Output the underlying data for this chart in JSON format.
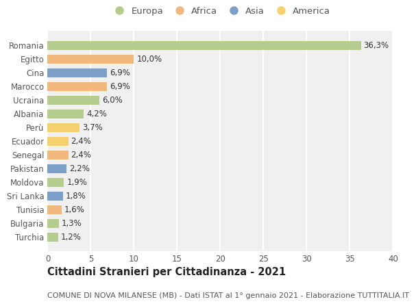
{
  "countries": [
    "Romania",
    "Egitto",
    "Cina",
    "Marocco",
    "Ucraina",
    "Albania",
    "Perù",
    "Ecuador",
    "Senegal",
    "Pakistan",
    "Moldova",
    "Sri Lanka",
    "Tunisia",
    "Bulgaria",
    "Turchia"
  ],
  "values": [
    36.3,
    10.0,
    6.9,
    6.9,
    6.0,
    4.2,
    3.7,
    2.4,
    2.4,
    2.2,
    1.9,
    1.8,
    1.6,
    1.3,
    1.2
  ],
  "labels": [
    "36,3%",
    "10,0%",
    "6,9%",
    "6,9%",
    "6,0%",
    "4,2%",
    "3,7%",
    "2,4%",
    "2,4%",
    "2,2%",
    "1,9%",
    "1,8%",
    "1,6%",
    "1,3%",
    "1,2%"
  ],
  "regions": [
    "Europa",
    "Africa",
    "Asia",
    "Africa",
    "Europa",
    "Europa",
    "America",
    "America",
    "Africa",
    "Asia",
    "Europa",
    "Asia",
    "Africa",
    "Europa",
    "Europa"
  ],
  "region_colors": {
    "Europa": "#b5cc8e",
    "Africa": "#f0b87c",
    "Asia": "#7b9fc7",
    "America": "#f5d06e"
  },
  "legend_order": [
    "Europa",
    "Africa",
    "Asia",
    "America"
  ],
  "title": "Cittadini Stranieri per Cittadinanza - 2021",
  "subtitle": "COMUNE DI NOVA MILANESE (MB) - Dati ISTAT al 1° gennaio 2021 - Elaborazione TUTTITALIA.IT",
  "xlim": [
    0,
    40
  ],
  "xticks": [
    0,
    5,
    10,
    15,
    20,
    25,
    30,
    35,
    40
  ],
  "background_color": "#ffffff",
  "plot_bg_color": "#f0f0f0",
  "grid_color": "#ffffff",
  "bar_height": 0.65,
  "label_fontsize": 8.5,
  "title_fontsize": 10.5,
  "subtitle_fontsize": 8.0,
  "tick_fontsize": 8.5,
  "legend_fontsize": 9.5
}
